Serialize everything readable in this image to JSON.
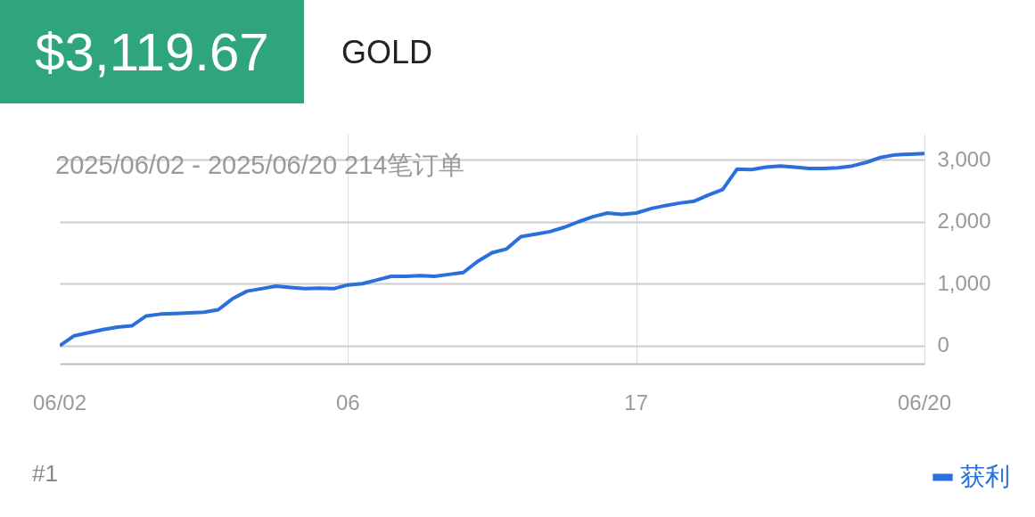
{
  "chart_data": {
    "type": "line",
    "title": "$3,119.67",
    "subtitle": "GOLD",
    "annotations": [
      "2025/06/02 - 2025/06/20  214笔订单",
      "#1"
    ],
    "categories": [
      "06/02",
      null,
      null,
      null,
      null,
      null,
      null,
      null,
      null,
      null,
      null,
      null,
      null,
      null,
      null,
      null,
      null,
      null,
      null,
      null,
      "06",
      null,
      null,
      null,
      null,
      null,
      null,
      null,
      null,
      null,
      null,
      null,
      null,
      null,
      null,
      null,
      null,
      null,
      null,
      null,
      "17",
      null,
      null,
      null,
      null,
      null,
      null,
      null,
      null,
      null,
      null,
      null,
      null,
      null,
      null,
      null,
      null,
      null,
      null,
      null,
      "06/20"
    ],
    "series": [
      {
        "name": "获利",
        "color": "#2a6fdb",
        "values": [
          0,
          160,
          210,
          260,
          300,
          320,
          480,
          510,
          520,
          530,
          540,
          580,
          760,
          880,
          920,
          960,
          940,
          920,
          930,
          920,
          980,
          1000,
          1060,
          1120,
          1120,
          1130,
          1120,
          1150,
          1180,
          1360,
          1500,
          1560,
          1760,
          1800,
          1840,
          1910,
          2000,
          2080,
          2140,
          2120,
          2140,
          2210,
          2260,
          2300,
          2330,
          2430,
          2520,
          2850,
          2840,
          2880,
          2900,
          2880,
          2860,
          2860,
          2870,
          2900,
          2960,
          3040,
          3080,
          3090,
          3100
        ]
      }
    ],
    "ylim": [
      -290,
      3420
    ],
    "yticks": [
      0,
      {
        "value": 1000,
        "label": "1,000"
      },
      {
        "value": 2000,
        "label": "2,000"
      },
      {
        "value": 3000,
        "label": "3,000"
      }
    ],
    "grid": true,
    "legend": "bottom right"
  }
}
